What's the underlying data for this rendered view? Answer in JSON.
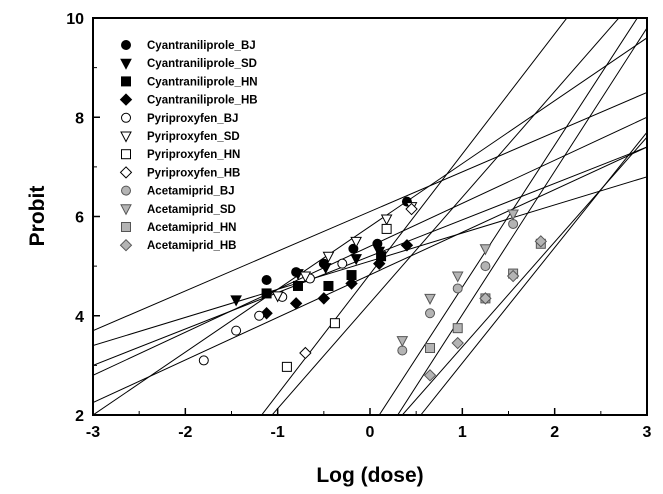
{
  "chart_data": {
    "type": "scatter",
    "xlabel": "Log (dose)",
    "ylabel": "Probit",
    "xlim": [
      -3,
      3
    ],
    "ylim": [
      2,
      10
    ],
    "x_ticks": [
      "-3",
      "-2",
      "-1",
      "0",
      "1",
      "2",
      "3"
    ],
    "y_ticks": [
      "2",
      "4",
      "6",
      "8",
      "10"
    ],
    "legend_position": "top-left",
    "grid": false,
    "series": [
      {
        "name": "Cyantraniliprole_BJ",
        "marker": "circle",
        "fill": "#000000",
        "stroke": "#000000",
        "points": [
          [
            -1.12,
            4.72
          ],
          [
            -0.8,
            4.88
          ],
          [
            -0.5,
            5.05
          ],
          [
            -0.18,
            5.35
          ],
          [
            0.08,
            5.45
          ],
          [
            0.4,
            6.3
          ]
        ],
        "fit_line": [
          [
            -3,
            3.7
          ],
          [
            3,
            8.5
          ]
        ]
      },
      {
        "name": "Cyantraniliprole_SD",
        "marker": "triangle-down",
        "fill": "#000000",
        "stroke": "#000000",
        "points": [
          [
            -1.45,
            4.32
          ],
          [
            -0.78,
            4.85
          ],
          [
            -0.48,
            4.97
          ],
          [
            -0.15,
            5.15
          ],
          [
            0.1,
            5.3
          ]
        ],
        "fit_line": [
          [
            -3,
            3.4
          ],
          [
            3,
            6.8
          ]
        ]
      },
      {
        "name": "Cyantraniliprole_HN",
        "marker": "square",
        "fill": "#000000",
        "stroke": "#000000",
        "points": [
          [
            -1.12,
            4.45
          ],
          [
            -0.78,
            4.6
          ],
          [
            -0.45,
            4.6
          ],
          [
            -0.2,
            4.82
          ],
          [
            0.12,
            5.2
          ]
        ],
        "fit_line": [
          [
            -3,
            3.0
          ],
          [
            3,
            7.4
          ]
        ]
      },
      {
        "name": "Cyantraniliprole_HB",
        "marker": "diamond",
        "fill": "#000000",
        "stroke": "#000000",
        "points": [
          [
            -1.12,
            4.05
          ],
          [
            -0.8,
            4.25
          ],
          [
            -0.5,
            4.35
          ],
          [
            -0.2,
            4.65
          ],
          [
            0.1,
            5.05
          ],
          [
            0.4,
            5.42
          ]
        ],
        "fit_line": [
          [
            -3,
            2.8
          ],
          [
            3,
            8.0
          ]
        ]
      },
      {
        "name": "Pyriproxyfen_BJ",
        "marker": "circle",
        "fill": "#ffffff",
        "stroke": "#000000",
        "points": [
          [
            -1.8,
            3.1
          ],
          [
            -1.45,
            3.7
          ],
          [
            -1.2,
            4.0
          ],
          [
            -0.95,
            4.38
          ],
          [
            -0.65,
            4.75
          ],
          [
            -0.3,
            5.05
          ]
        ],
        "fit_line": [
          [
            -3,
            2.25
          ],
          [
            3,
            7.4
          ]
        ]
      },
      {
        "name": "Pyriproxyfen_SD",
        "marker": "triangle-down",
        "fill": "#ffffff",
        "stroke": "#000000",
        "points": [
          [
            -1.0,
            4.4
          ],
          [
            -0.7,
            4.8
          ],
          [
            -0.45,
            5.2
          ],
          [
            -0.15,
            5.5
          ],
          [
            0.18,
            5.95
          ],
          [
            0.45,
            6.2
          ]
        ],
        "fit_line": [
          [
            -3,
            2.0
          ],
          [
            3,
            9.6
          ]
        ]
      },
      {
        "name": "Pyriproxyfen_HN",
        "marker": "square",
        "fill": "#ffffff",
        "stroke": "#000000",
        "points": [
          [
            -0.9,
            2.97
          ],
          [
            -0.38,
            3.85
          ],
          [
            0.18,
            5.75
          ]
        ],
        "fit_line": [
          [
            -2.0,
            0.0
          ],
          [
            3,
            10.65
          ]
        ]
      },
      {
        "name": "Pyriproxyfen_HB",
        "marker": "diamond",
        "fill": "#ffffff",
        "stroke": "#000000",
        "points": [
          [
            -0.7,
            3.25
          ],
          [
            0.45,
            6.15
          ]
        ],
        "fit_line": [
          [
            -2.0,
            0.0
          ],
          [
            3,
            12.1
          ]
        ]
      },
      {
        "name": "Acetamiprid_BJ",
        "marker": "circle",
        "fill": "#b4b4b4",
        "stroke": "#555555",
        "points": [
          [
            0.35,
            3.3
          ],
          [
            0.65,
            4.05
          ],
          [
            0.95,
            4.55
          ],
          [
            1.25,
            5.0
          ],
          [
            1.55,
            5.85
          ]
        ],
        "fit_line": [
          [
            0.3,
            2.0
          ],
          [
            3,
            9.8
          ]
        ]
      },
      {
        "name": "Acetamiprid_SD",
        "marker": "triangle-down",
        "fill": "#b4b4b4",
        "stroke": "#555555",
        "points": [
          [
            0.35,
            3.5
          ],
          [
            0.65,
            4.35
          ],
          [
            0.95,
            4.8
          ],
          [
            1.25,
            5.35
          ],
          [
            1.55,
            6.05
          ]
        ],
        "fit_line": [
          [
            0.1,
            2.0
          ],
          [
            3,
            10.3
          ]
        ]
      },
      {
        "name": "Acetamiprid_HN",
        "marker": "square",
        "fill": "#b4b4b4",
        "stroke": "#555555",
        "points": [
          [
            0.65,
            3.35
          ],
          [
            0.95,
            3.75
          ],
          [
            1.25,
            4.35
          ],
          [
            1.55,
            4.85
          ],
          [
            1.85,
            5.45
          ]
        ],
        "fit_line": [
          [
            0.55,
            2.0
          ],
          [
            3,
            7.7
          ]
        ]
      },
      {
        "name": "Acetamiprid_HB",
        "marker": "diamond",
        "fill": "#b4b4b4",
        "stroke": "#555555",
        "points": [
          [
            0.65,
            2.8
          ],
          [
            0.95,
            3.45
          ],
          [
            1.25,
            4.35
          ],
          [
            1.55,
            4.8
          ],
          [
            1.85,
            5.5
          ]
        ],
        "fit_line": [
          [
            0.35,
            2.0
          ],
          [
            3,
            7.6
          ]
        ]
      }
    ]
  }
}
